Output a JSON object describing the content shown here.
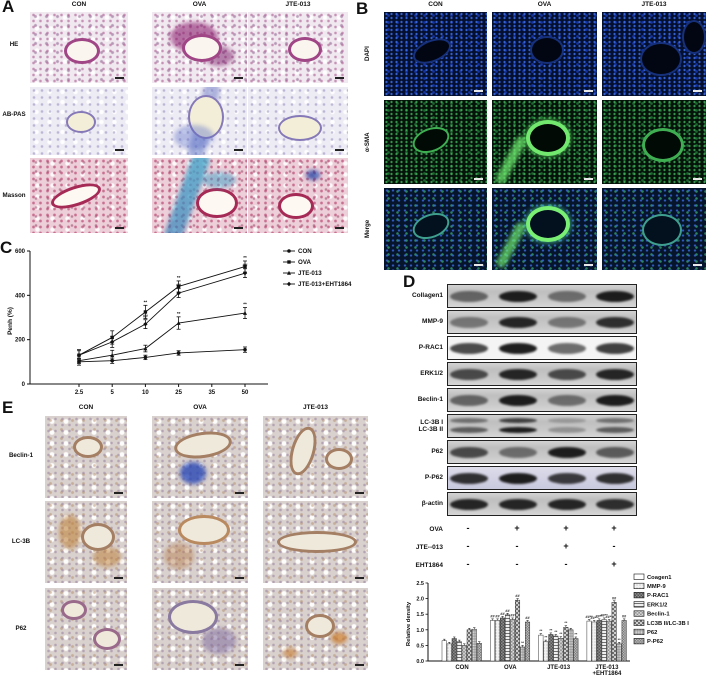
{
  "panels": {
    "A": {
      "label": "A",
      "columns": [
        "CON",
        "OVA",
        "JTE-013"
      ],
      "rows": [
        "HE",
        "AB-PAS",
        "Masson"
      ]
    },
    "B": {
      "label": "B",
      "columns": [
        "CON",
        "OVA",
        "JTE-013"
      ],
      "rows": [
        "DAPI",
        "α-SMA",
        "Merge"
      ]
    },
    "C": {
      "label": "C"
    },
    "D": {
      "label": "D",
      "western_blot": {
        "targets": [
          {
            "label": "Collagen1",
            "bg": "gray",
            "intensities": [
              0.55,
              0.95,
              0.5,
              0.95
            ]
          },
          {
            "label": "MMP-9",
            "bg": "gray",
            "intensities": [
              0.45,
              0.9,
              0.45,
              0.85
            ]
          },
          {
            "label": "P-RAC1",
            "bg": "light",
            "intensities": [
              0.75,
              0.95,
              0.6,
              0.8
            ]
          },
          {
            "label": "ERK1/2",
            "bg": "gray",
            "intensities": [
              0.7,
              0.9,
              0.7,
              0.9
            ]
          },
          {
            "label": "Beclin-1",
            "bg": "gray",
            "intensities": [
              0.55,
              0.95,
              0.5,
              0.95
            ]
          },
          {
            "label": "LC-3B I\nLC-3B II",
            "bg": "gray",
            "double": true,
            "intensities": [
              0.6,
              0.95,
              0.3,
              0.6
            ]
          },
          {
            "label": "P62",
            "bg": "gray",
            "intensities": [
              0.7,
              0.5,
              0.95,
              0.6
            ]
          },
          {
            "label": "P-P62",
            "bg": "lavender",
            "intensities": [
              0.85,
              0.95,
              0.8,
              0.85
            ]
          },
          {
            "label": "β-actin",
            "bg": "gray",
            "intensities": [
              0.9,
              0.9,
              0.9,
              0.85
            ]
          }
        ],
        "conditions": [
          {
            "name": "OVA",
            "signs": [
              "-",
              "+",
              "+",
              "+"
            ]
          },
          {
            "name": "JTE--013",
            "signs": [
              "-",
              "-",
              "+",
              "-"
            ]
          },
          {
            "name": "EHT1864",
            "signs": [
              "-",
              "-",
              "-",
              "+"
            ]
          }
        ]
      }
    },
    "E": {
      "label": "E",
      "columns": [
        "CON",
        "OVA",
        "JTE-013"
      ],
      "rows": [
        "Beclin-1",
        "LC-3B",
        "P62"
      ]
    }
  },
  "chart_data": [
    {
      "id": "penh",
      "type": "line",
      "title": "",
      "xlabel": "",
      "ylabel": "Penh (%)",
      "ylim": [
        0,
        600
      ],
      "yticks": [
        0,
        200,
        400,
        600
      ],
      "xticks": [
        "2.5",
        "5",
        "10",
        "25",
        "35",
        "50"
      ],
      "data_tick_indices": [
        0,
        1,
        2,
        3,
        5
      ],
      "legend_position": "top-right",
      "series": [
        {
          "name": "CON",
          "marker": "circle",
          "values": [
            100,
            105,
            120,
            140,
            155
          ],
          "errors": [
            15,
            12,
            10,
            10,
            12
          ],
          "annotations": [
            "",
            "",
            "",
            "",
            ""
          ]
        },
        {
          "name": "OVA",
          "marker": "square",
          "values": [
            130,
            210,
            325,
            440,
            530
          ],
          "errors": [
            25,
            30,
            30,
            25,
            25
          ],
          "annotations": [
            "",
            "",
            "**",
            "**",
            "**"
          ]
        },
        {
          "name": "JTE-013",
          "marker": "triangle",
          "values": [
            105,
            130,
            160,
            275,
            320
          ],
          "errors": [
            12,
            22,
            15,
            28,
            25
          ],
          "annotations": [
            "",
            "",
            "",
            "**",
            "**"
          ]
        },
        {
          "name": "JTE-013+EHT1864",
          "marker": "diamond",
          "values": [
            130,
            190,
            270,
            410,
            500
          ],
          "errors": [
            20,
            25,
            20,
            20,
            20
          ],
          "annotations": [
            "",
            "",
            "##",
            "##",
            "##"
          ]
        }
      ]
    },
    {
      "id": "density",
      "type": "bar",
      "title": "",
      "xlabel": "",
      "ylabel": "Relative density",
      "ylim": [
        0,
        2.5
      ],
      "yticks": [
        "0.0",
        "0.5",
        "1.0",
        "1.5",
        "2.0",
        "2.5"
      ],
      "categories": [
        "CON",
        "OVA",
        "JTE-013",
        "JTE-013\n+EHT1864"
      ],
      "series": [
        {
          "name": "Coagen1",
          "values": [
            0.65,
            1.3,
            0.83,
            1.28
          ]
        },
        {
          "name": "MMP-9",
          "values": [
            0.55,
            1.3,
            0.62,
            1.25
          ]
        },
        {
          "name": "P-RAC1",
          "values": [
            0.72,
            1.38,
            0.85,
            1.3
          ]
        },
        {
          "name": "ERK1/2",
          "values": [
            0.62,
            1.48,
            0.8,
            1.33
          ]
        },
        {
          "name": "Beclin-1",
          "values": [
            0.5,
            1.33,
            0.73,
            1.28
          ]
        },
        {
          "name": "LC3B II/LC-3B I",
          "values": [
            1.0,
            1.95,
            1.08,
            1.88
          ]
        },
        {
          "name": "P62",
          "values": [
            1.02,
            0.45,
            1.0,
            0.55
          ]
        },
        {
          "name": "P-P62",
          "values": [
            0.57,
            1.25,
            0.72,
            1.3
          ]
        }
      ],
      "annotations": [
        [
          "",
          "",
          "",
          "",
          "",
          "",
          "",
          ""
        ],
        [
          "##",
          "##",
          "##",
          "##",
          "##",
          "##",
          "**",
          "##"
        ],
        [
          "**",
          "**",
          "**",
          "**",
          "**",
          "**",
          "",
          "**"
        ],
        [
          "##**",
          "##**",
          "##**",
          "##**",
          "##**",
          "##",
          "**",
          "##"
        ]
      ]
    }
  ]
}
